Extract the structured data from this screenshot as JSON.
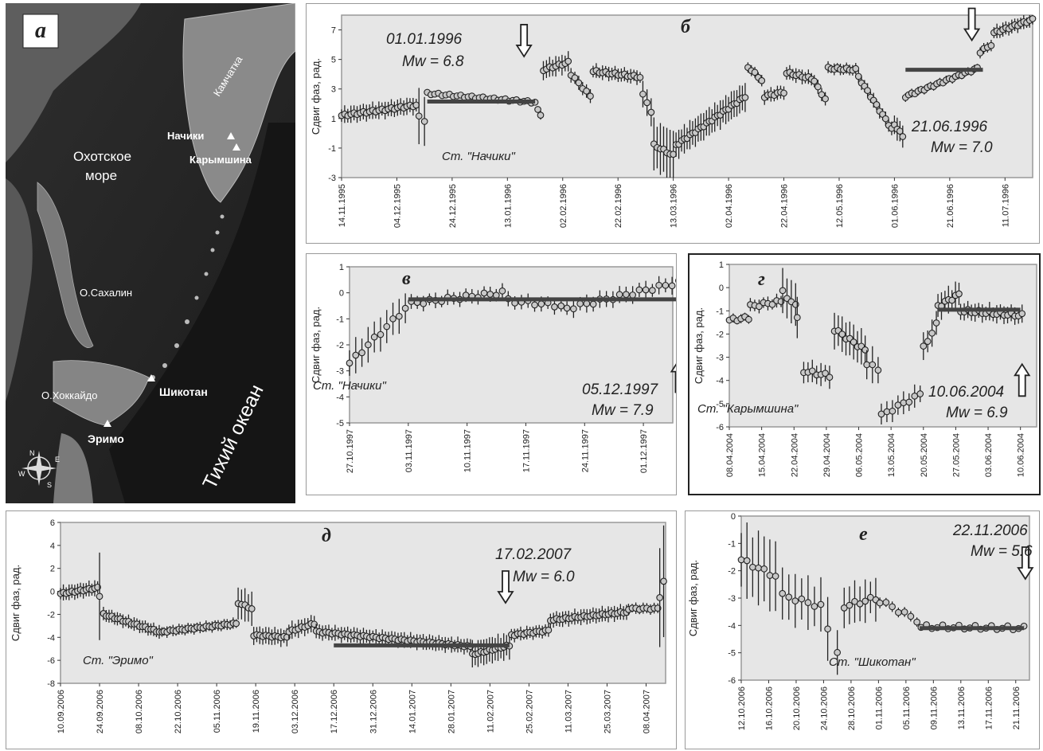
{
  "map": {
    "letter": "а",
    "labels": {
      "kamchatka": "Камчатка",
      "nachiki": "Начики",
      "karymshina": "Карымшина",
      "okhotsk": "Охотское\nморе",
      "sakhalin": "О.Сахалин",
      "hokkaido": "О.Хоккайдо",
      "shikotan": "Шикотан",
      "erimo": "Эримо",
      "pacific": "Тихий  океан"
    },
    "compass": [
      "N",
      "E",
      "S",
      "W"
    ]
  },
  "chart_data": [
    {
      "id": "b",
      "type": "scatter",
      "letter": "б",
      "ylabel": "Сдвиг фаз, рад.",
      "ylim": [
        -3,
        8
      ],
      "yticks": [
        -3,
        -1,
        1,
        3,
        5,
        7
      ],
      "grid": false,
      "categories": [
        "14.11.1995",
        "04.12.1995",
        "24.12.1995",
        "13.01.1996",
        "02.02.1996",
        "22.02.1996",
        "13.03.1996",
        "02.04.1996",
        "22.04.1996",
        "12.05.1996",
        "01.06.1996",
        "21.06.1996",
        "11.07.1996"
      ],
      "station": "Ст. \"Начики\"",
      "annotations": [
        {
          "date": "01.01.1996",
          "mw": "Mw = 6.8"
        },
        {
          "date": "21.06.1996",
          "mw": "Mw = 7.0"
        }
      ],
      "baselines": [
        {
          "x0": 1.55,
          "x1": 3.5,
          "y": 2.15
        },
        {
          "x0": 10.2,
          "x1": 11.6,
          "y": 4.3
        }
      ],
      "arrows": [
        {
          "x": 3.3,
          "y": 5.2
        },
        {
          "x": 11.4,
          "y": 6.3
        }
      ],
      "segments": [
        {
          "x0": 0,
          "x1": 1.35,
          "y0": 1.2,
          "y1": 1.9,
          "err": 0.6,
          "n": 25
        },
        {
          "x0": 1.4,
          "x1": 1.5,
          "y0": 1.1,
          "y1": 0.8,
          "err": 2.0,
          "n": 2
        },
        {
          "x0": 1.55,
          "x1": 3.5,
          "y0": 2.7,
          "y1": 2.1,
          "err": 0.15,
          "n": 30
        },
        {
          "x0": 3.55,
          "x1": 3.6,
          "y0": 1.6,
          "y1": 1.3,
          "err": 0.3,
          "n": 2
        },
        {
          "x0": 3.65,
          "x1": 4.1,
          "y0": 4.3,
          "y1": 4.8,
          "err": 0.7,
          "n": 9
        },
        {
          "x0": 4.15,
          "x1": 4.5,
          "y0": 4.0,
          "y1": 2.5,
          "err": 0.5,
          "n": 6
        },
        {
          "x0": 4.55,
          "x1": 5.4,
          "y0": 4.2,
          "y1": 3.8,
          "err": 0.5,
          "n": 16
        },
        {
          "x0": 5.45,
          "x1": 5.6,
          "y0": 2.6,
          "y1": 1.5,
          "err": 1.0,
          "n": 3
        },
        {
          "x0": 5.65,
          "x1": 6.0,
          "y0": -0.8,
          "y1": -1.5,
          "err": 1.8,
          "n": 7
        },
        {
          "x0": 6.05,
          "x1": 7.3,
          "y0": -0.8,
          "y1": 2.5,
          "err": 1.0,
          "n": 26
        },
        {
          "x0": 7.35,
          "x1": 7.6,
          "y0": 4.5,
          "y1": 3.6,
          "err": 0.4,
          "n": 5
        },
        {
          "x0": 7.65,
          "x1": 8.0,
          "y0": 2.5,
          "y1": 2.8,
          "err": 0.5,
          "n": 7
        },
        {
          "x0": 8.05,
          "x1": 8.5,
          "y0": 4.1,
          "y1": 3.7,
          "err": 0.5,
          "n": 9
        },
        {
          "x0": 8.55,
          "x1": 8.75,
          "y0": 3.5,
          "y1": 2.3,
          "err": 0.5,
          "n": 4
        },
        {
          "x0": 8.8,
          "x1": 9.3,
          "y0": 4.4,
          "y1": 4.3,
          "err": 0.4,
          "n": 10
        },
        {
          "x0": 9.35,
          "x1": 9.95,
          "y0": 3.8,
          "y1": 0.3,
          "err": 0.5,
          "n": 12
        },
        {
          "x0": 10.0,
          "x1": 10.15,
          "y0": 0.6,
          "y1": -0.2,
          "err": 0.8,
          "n": 4
        },
        {
          "x0": 10.2,
          "x1": 11.5,
          "y0": 2.5,
          "y1": 4.4,
          "err": 0.3,
          "n": 24
        },
        {
          "x0": 11.55,
          "x1": 11.75,
          "y0": 5.5,
          "y1": 6.0,
          "err": 0.4,
          "n": 4
        },
        {
          "x0": 11.8,
          "x1": 12.5,
          "y0": 6.8,
          "y1": 7.7,
          "err": 0.5,
          "n": 14
        }
      ]
    },
    {
      "id": "v",
      "type": "scatter",
      "letter": "в",
      "ylabel": "Сдвиг фаз, рад.",
      "ylim": [
        -5,
        1
      ],
      "yticks": [
        -5,
        -4,
        -3,
        -2,
        -1,
        0,
        1
      ],
      "grid": false,
      "categories": [
        "27.10.1997",
        "03.11.1997",
        "10.11.1997",
        "17.11.1997",
        "24.11.1997",
        "01.12.1997"
      ],
      "station": "Ст. \"Начики\"",
      "annotations": [
        {
          "date": "05.12.1997",
          "mw": "Mw = 7.9"
        }
      ],
      "baselines": [
        {
          "x0": 1.0,
          "x1": 5.6,
          "y": -0.25
        }
      ],
      "arrows": [
        {
          "x": 5.6,
          "y": -2.6,
          "dir": "up"
        }
      ],
      "segments": [
        {
          "x0": 0,
          "x1": 0.95,
          "y0": -2.7,
          "y1": -0.6,
          "err": 0.7,
          "n": 10
        },
        {
          "x0": 1.05,
          "x1": 2.6,
          "y0": -0.4,
          "y1": 0.0,
          "err": 0.3,
          "n": 16
        },
        {
          "x0": 2.7,
          "x1": 3.6,
          "y0": -0.3,
          "y1": -0.5,
          "err": 0.3,
          "n": 9
        },
        {
          "x0": 3.7,
          "x1": 5.6,
          "y0": -0.6,
          "y1": 0.4,
          "err": 0.35,
          "n": 18
        }
      ]
    },
    {
      "id": "g",
      "type": "scatter",
      "letter": "г",
      "ylabel": "Сдвиг фаз, рад.",
      "ylim": [
        -6,
        1
      ],
      "yticks": [
        -6,
        -5,
        -4,
        -3,
        -2,
        -1,
        0,
        1
      ],
      "grid": false,
      "categories": [
        "08.04.2004",
        "15.04.2004",
        "22.04.2004",
        "29.04.2004",
        "06.05.2004",
        "13.05.2004",
        "20.05.2004",
        "27.05.2004",
        "03.06.2004",
        "10.06.2004"
      ],
      "station": "Ст. \"Карымшина\"",
      "annotations": [
        {
          "date": "10.06.2004",
          "mw": "Mw = 6.9"
        }
      ],
      "baselines": [
        {
          "x0": 6.45,
          "x1": 9.0,
          "y": -0.95
        }
      ],
      "arrows": [
        {
          "x": 9.05,
          "y": -3.3,
          "dir": "up"
        }
      ],
      "segments": [
        {
          "x0": 0,
          "x1": 0.6,
          "y0": -1.4,
          "y1": -1.3,
          "err": 0.2,
          "n": 6
        },
        {
          "x0": 0.65,
          "x1": 1.6,
          "y0": -0.8,
          "y1": -0.6,
          "err": 0.3,
          "n": 8
        },
        {
          "x0": 1.65,
          "x1": 2.05,
          "y0": -0.2,
          "y1": -0.8,
          "err": 1.0,
          "n": 4
        },
        {
          "x0": 2.1,
          "x1": 2.15,
          "y0": -1.3,
          "y1": -1.3,
          "err": 1.2,
          "n": 1
        },
        {
          "x0": 2.3,
          "x1": 3.1,
          "y0": -3.6,
          "y1": -3.8,
          "err": 0.5,
          "n": 7
        },
        {
          "x0": 3.25,
          "x1": 4.2,
          "y0": -1.8,
          "y1": -2.7,
          "err": 0.8,
          "n": 9
        },
        {
          "x0": 4.25,
          "x1": 4.6,
          "y0": -3.3,
          "y1": -3.5,
          "err": 0.8,
          "n": 3
        },
        {
          "x0": 4.7,
          "x1": 5.9,
          "y0": -5.5,
          "y1": -4.6,
          "err": 0.5,
          "n": 8
        },
        {
          "x0": 6.0,
          "x1": 6.4,
          "y0": -2.6,
          "y1": -1.6,
          "err": 0.6,
          "n": 4
        },
        {
          "x0": 6.45,
          "x1": 7.1,
          "y0": -0.8,
          "y1": -0.3,
          "err": 0.6,
          "n": 7
        },
        {
          "x0": 7.15,
          "x1": 9.05,
          "y0": -1.0,
          "y1": -1.2,
          "err": 0.4,
          "n": 18
        }
      ]
    },
    {
      "id": "d",
      "type": "scatter",
      "letter": "д",
      "ylabel": "Сдвиг  фаз,  рад.",
      "ylim": [
        -8,
        6
      ],
      "yticks": [
        -8,
        -6,
        -4,
        -2,
        0,
        2,
        4,
        6
      ],
      "grid": false,
      "categories": [
        "10.09.2006",
        "24.09.2006",
        "08.10.2006",
        "22.10.2006",
        "05.11.2006",
        "19.11.2006",
        "03.12.2006",
        "17.12.2006",
        "31.12.2006",
        "14.01.2007",
        "28.01.2007",
        "11.02.2007",
        "25.02.2007",
        "11.03.2007",
        "25.03.2007",
        "08.04.2007"
      ],
      "station": "Ст. \"Эримо\"",
      "annotations": [
        {
          "date": "17.02.2007",
          "mw": "Mw = 6.0"
        }
      ],
      "baselines": [
        {
          "x0": 7.0,
          "x1": 11.5,
          "y": -4.7
        }
      ],
      "arrows": [
        {
          "x": 11.4,
          "y": -1.0
        }
      ],
      "segments": [
        {
          "x0": 0,
          "x1": 0.95,
          "y0": -0.2,
          "y1": 0.3,
          "err": 0.7,
          "n": 14
        },
        {
          "x0": 1.0,
          "x1": 1.05,
          "y0": -0.5,
          "y1": -0.5,
          "err": 4.0,
          "n": 1
        },
        {
          "x0": 1.1,
          "x1": 2.6,
          "y0": -2.0,
          "y1": -3.6,
          "err": 0.6,
          "n": 22
        },
        {
          "x0": 2.65,
          "x1": 4.5,
          "y0": -3.5,
          "y1": -2.8,
          "err": 0.5,
          "n": 25
        },
        {
          "x0": 4.55,
          "x1": 4.9,
          "y0": -1.0,
          "y1": -1.5,
          "err": 1.5,
          "n": 5
        },
        {
          "x0": 4.95,
          "x1": 5.8,
          "y0": -3.8,
          "y1": -4.0,
          "err": 0.8,
          "n": 12
        },
        {
          "x0": 5.85,
          "x1": 6.5,
          "y0": -3.5,
          "y1": -2.8,
          "err": 0.8,
          "n": 9
        },
        {
          "x0": 6.55,
          "x1": 10.5,
          "y0": -3.5,
          "y1": -4.8,
          "err": 0.7,
          "n": 50
        },
        {
          "x0": 10.55,
          "x1": 11.5,
          "y0": -5.5,
          "y1": -4.7,
          "err": 1.2,
          "n": 14
        },
        {
          "x0": 11.55,
          "x1": 12.5,
          "y0": -3.8,
          "y1": -3.4,
          "err": 0.6,
          "n": 13
        },
        {
          "x0": 12.55,
          "x1": 14.5,
          "y0": -2.5,
          "y1": -1.8,
          "err": 0.7,
          "n": 26
        },
        {
          "x0": 14.55,
          "x1": 15.3,
          "y0": -1.5,
          "y1": -1.5,
          "err": 0.5,
          "n": 9
        },
        {
          "x0": 15.35,
          "x1": 15.45,
          "y0": -0.5,
          "y1": 0.8,
          "err": 5.0,
          "n": 2
        }
      ]
    },
    {
      "id": "e",
      "type": "scatter",
      "letter": "е",
      "ylabel": "Сдвиг фаз, рад.",
      "ylim": [
        -6,
        0
      ],
      "yticks": [
        -6,
        -5,
        -4,
        -3,
        -2,
        -1,
        0
      ],
      "grid": false,
      "categories": [
        "12.10.2006",
        "16.10.2006",
        "20.10.2006",
        "24.10.2006",
        "28.10.2006",
        "01.11.2006",
        "05.11.2006",
        "09.11.2006",
        "13.11.2006",
        "17.11.2006",
        "21.11.2006"
      ],
      "station": "Ст. \"Шикотан\"",
      "annotations": [
        {
          "date": "22.11.2006",
          "mw": "Mw = 5.6"
        }
      ],
      "baselines": [
        {
          "x0": 6.5,
          "x1": 10.3,
          "y": -4.1
        }
      ],
      "arrows": [
        {
          "x": 10.35,
          "y": -2.3
        }
      ],
      "segments": [
        {
          "x0": 0,
          "x1": 1.25,
          "y0": -1.6,
          "y1": -2.2,
          "err": 1.4,
          "n": 7
        },
        {
          "x0": 1.5,
          "x1": 2.9,
          "y0": -2.9,
          "y1": -3.3,
          "err": 1.0,
          "n": 7
        },
        {
          "x0": 3.15,
          "x1": 3.15,
          "y0": -4.2,
          "y1": -4.2,
          "err": 1.2,
          "n": 1
        },
        {
          "x0": 3.5,
          "x1": 3.5,
          "y0": -5.0,
          "y1": -5.0,
          "err": 1.1,
          "n": 1
        },
        {
          "x0": 3.75,
          "x1": 4.9,
          "y0": -3.3,
          "y1": -3.0,
          "err": 0.8,
          "n": 7
        },
        {
          "x0": 5.05,
          "x1": 6.4,
          "y0": -3.1,
          "y1": -3.8,
          "err": 0.2,
          "n": 7
        },
        {
          "x0": 6.55,
          "x1": 10.3,
          "y0": -4.05,
          "y1": -4.1,
          "err": 0.1,
          "n": 20
        }
      ]
    }
  ]
}
